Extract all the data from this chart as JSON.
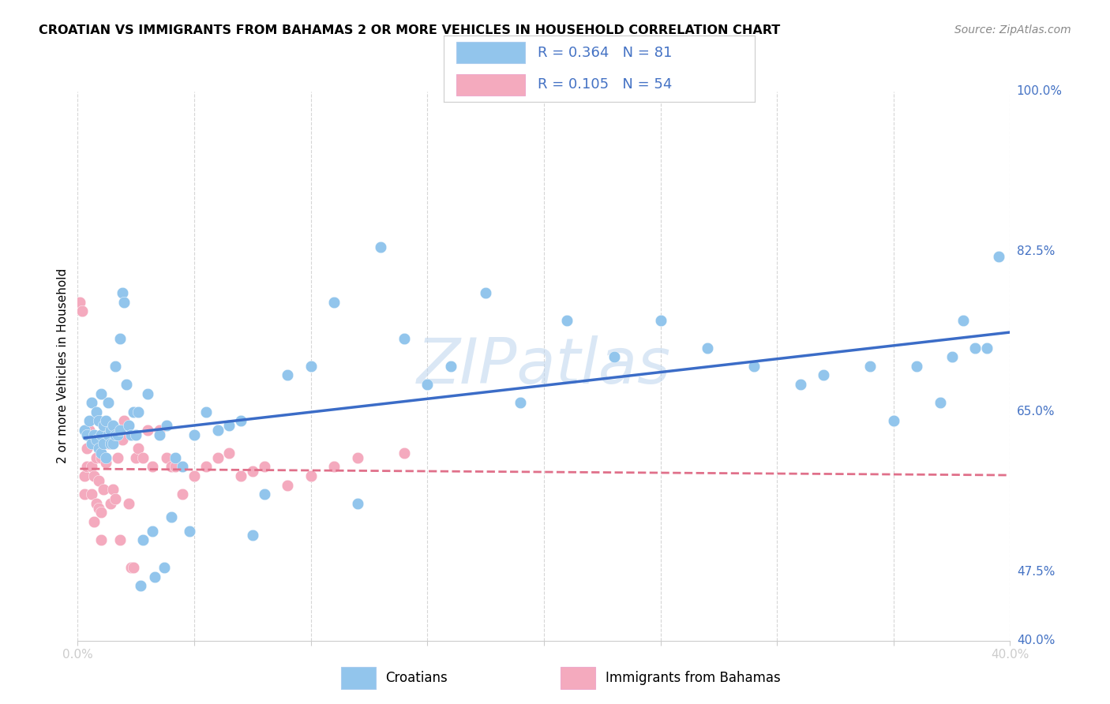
{
  "title": "CROATIAN VS IMMIGRANTS FROM BAHAMAS 2 OR MORE VEHICLES IN HOUSEHOLD CORRELATION CHART",
  "source": "Source: ZipAtlas.com",
  "ylabel": "2 or more Vehicles in Household",
  "xlim": [
    0.0,
    0.4
  ],
  "ylim": [
    0.4,
    1.0
  ],
  "watermark": "ZIPatlas",
  "croatian_color": "#92C5EC",
  "bahamas_color": "#F4AABE",
  "trend_blue": "#3B6CC7",
  "trend_pink": "#E0708A",
  "legend_R_croatian": "0.364",
  "legend_N_croatian": "81",
  "legend_R_bahamas": "0.105",
  "legend_N_bahamas": "54",
  "croatian_x": [
    0.003,
    0.004,
    0.005,
    0.006,
    0.006,
    0.007,
    0.008,
    0.008,
    0.009,
    0.009,
    0.01,
    0.01,
    0.01,
    0.011,
    0.011,
    0.012,
    0.012,
    0.013,
    0.013,
    0.014,
    0.014,
    0.015,
    0.015,
    0.016,
    0.016,
    0.017,
    0.018,
    0.018,
    0.019,
    0.02,
    0.021,
    0.022,
    0.023,
    0.024,
    0.025,
    0.026,
    0.027,
    0.028,
    0.03,
    0.032,
    0.033,
    0.035,
    0.037,
    0.038,
    0.04,
    0.042,
    0.045,
    0.048,
    0.05,
    0.055,
    0.06,
    0.065,
    0.07,
    0.075,
    0.08,
    0.09,
    0.1,
    0.11,
    0.12,
    0.13,
    0.14,
    0.15,
    0.16,
    0.175,
    0.19,
    0.21,
    0.23,
    0.25,
    0.27,
    0.29,
    0.31,
    0.32,
    0.34,
    0.35,
    0.36,
    0.37,
    0.375,
    0.38,
    0.385,
    0.39,
    0.395
  ],
  "croatian_y": [
    0.63,
    0.625,
    0.64,
    0.615,
    0.66,
    0.625,
    0.62,
    0.65,
    0.61,
    0.64,
    0.605,
    0.625,
    0.67,
    0.615,
    0.635,
    0.6,
    0.64,
    0.625,
    0.66,
    0.615,
    0.63,
    0.615,
    0.635,
    0.625,
    0.7,
    0.625,
    0.63,
    0.73,
    0.78,
    0.77,
    0.68,
    0.635,
    0.625,
    0.65,
    0.625,
    0.65,
    0.46,
    0.51,
    0.67,
    0.52,
    0.47,
    0.625,
    0.48,
    0.635,
    0.535,
    0.6,
    0.59,
    0.52,
    0.625,
    0.65,
    0.63,
    0.635,
    0.64,
    0.515,
    0.56,
    0.69,
    0.7,
    0.77,
    0.55,
    0.83,
    0.73,
    0.68,
    0.7,
    0.78,
    0.66,
    0.75,
    0.71,
    0.75,
    0.72,
    0.7,
    0.68,
    0.69,
    0.7,
    0.64,
    0.7,
    0.66,
    0.71,
    0.75,
    0.72,
    0.72,
    0.82
  ],
  "bahamas_x": [
    0.001,
    0.002,
    0.003,
    0.003,
    0.004,
    0.004,
    0.005,
    0.005,
    0.006,
    0.006,
    0.007,
    0.007,
    0.008,
    0.008,
    0.009,
    0.009,
    0.01,
    0.01,
    0.01,
    0.011,
    0.012,
    0.013,
    0.014,
    0.015,
    0.016,
    0.017,
    0.018,
    0.019,
    0.02,
    0.022,
    0.023,
    0.024,
    0.025,
    0.026,
    0.028,
    0.03,
    0.032,
    0.035,
    0.038,
    0.04,
    0.042,
    0.045,
    0.05,
    0.055,
    0.06,
    0.065,
    0.07,
    0.075,
    0.08,
    0.09,
    0.1,
    0.11,
    0.12,
    0.14
  ],
  "bahamas_y": [
    0.77,
    0.76,
    0.56,
    0.58,
    0.61,
    0.59,
    0.63,
    0.63,
    0.59,
    0.56,
    0.58,
    0.53,
    0.55,
    0.6,
    0.545,
    0.575,
    0.51,
    0.54,
    0.6,
    0.565,
    0.595,
    0.615,
    0.55,
    0.565,
    0.555,
    0.6,
    0.51,
    0.62,
    0.64,
    0.55,
    0.48,
    0.48,
    0.6,
    0.61,
    0.6,
    0.63,
    0.59,
    0.63,
    0.6,
    0.59,
    0.59,
    0.56,
    0.58,
    0.59,
    0.6,
    0.605,
    0.58,
    0.585,
    0.59,
    0.57,
    0.58,
    0.59,
    0.6,
    0.605
  ],
  "right_ytick_vals": [
    1.0,
    0.825,
    0.65,
    0.475,
    0.4
  ],
  "right_ytick_labels": [
    "100.0%",
    "82.5%",
    "65.0%",
    "47.5%",
    "40.0%"
  ]
}
